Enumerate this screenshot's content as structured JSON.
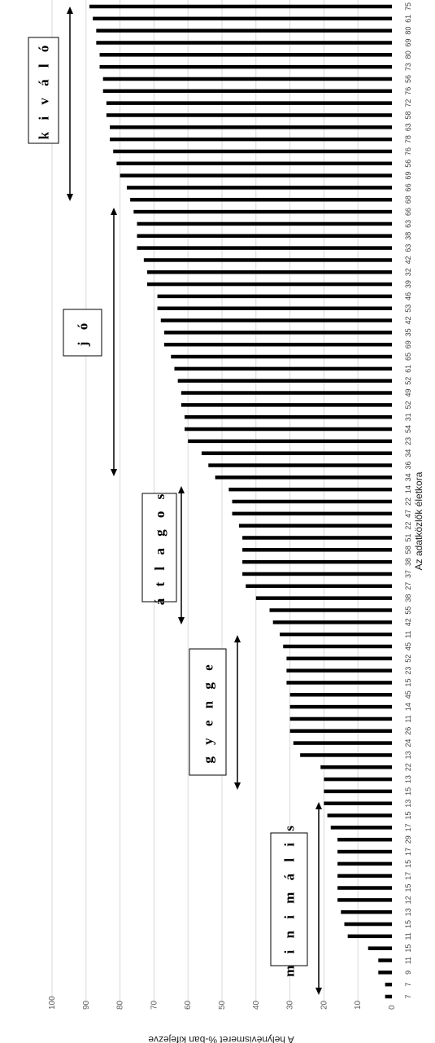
{
  "chart_data": {
    "type": "bar",
    "orientation": "horizontal",
    "rotated": true,
    "xlabel": "Az adatközlők életkora",
    "ylabel": "A helynévismeret %-ban kifejezve",
    "ylim": [
      0,
      100
    ],
    "yticks": [
      "0",
      "10",
      "20",
      "30",
      "40",
      "50",
      "60",
      "70",
      "80",
      "90",
      "100"
    ],
    "grid": true,
    "categories": [
      "7",
      "7",
      "9",
      "11",
      "15",
      "11",
      "15",
      "13",
      "12",
      "15",
      "17",
      "15",
      "17",
      "29",
      "17",
      "15",
      "13",
      "15",
      "13",
      "22",
      "13",
      "24",
      "26",
      "11",
      "14",
      "45",
      "15",
      "23",
      "52",
      "45",
      "11",
      "42",
      "55",
      "38",
      "27",
      "37",
      "38",
      "58",
      "51",
      "22",
      "47",
      "22",
      "14",
      "34",
      "36",
      "34",
      "23",
      "54",
      "31",
      "52",
      "49",
      "52",
      "61",
      "65",
      "69",
      "35",
      "42",
      "53",
      "46",
      "39",
      "32",
      "42",
      "63",
      "38",
      "63",
      "66",
      "68",
      "66",
      "69",
      "56",
      "76",
      "78",
      "63",
      "58",
      "72",
      "76",
      "56",
      "73",
      "80",
      "69",
      "80",
      "61",
      "75"
    ],
    "values": [
      2,
      2,
      4,
      4,
      7,
      13,
      14,
      15,
      16,
      16,
      16,
      16,
      16,
      16,
      18,
      19,
      20,
      20,
      20,
      21,
      27,
      29,
      30,
      30,
      30,
      30,
      31,
      31,
      31,
      32,
      33,
      35,
      36,
      40,
      43,
      44,
      44,
      44,
      44,
      45,
      47,
      47,
      48,
      52,
      54,
      56,
      60,
      61,
      61,
      62,
      62,
      63,
      64,
      65,
      67,
      67,
      68,
      69,
      69,
      72,
      72,
      73,
      75,
      75,
      75,
      76,
      77,
      78,
      80,
      81,
      82,
      83,
      83,
      84,
      84,
      85,
      85,
      86,
      86,
      87,
      87,
      88,
      89
    ],
    "annotations": [
      {
        "label": "m i n i m á l i s",
        "range": [
          1,
          20
        ]
      },
      {
        "label": "g y e n g e",
        "range": [
          21,
          33
        ]
      },
      {
        "label": "á t l a g o s",
        "range": [
          34,
          46
        ]
      },
      {
        "label": "j ó",
        "range": [
          47,
          68
        ]
      },
      {
        "label": "k i v á l ó",
        "range": [
          69,
          83
        ]
      }
    ]
  }
}
